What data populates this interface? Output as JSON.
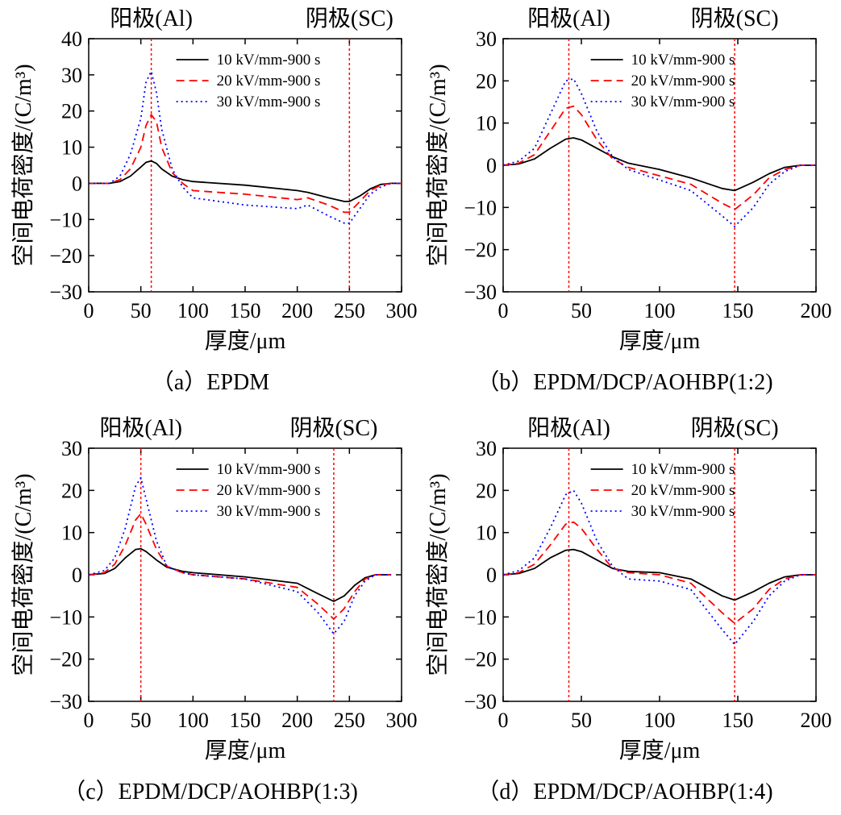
{
  "chart_data": [
    {
      "type": "line",
      "caption": "（a）EPDM",
      "anode_label": "阳极(Al)",
      "cathode_label": "阴极(SC)",
      "xlabel": "厚度/μm",
      "ylabel": "空间电荷密度/(C/m³)",
      "xlim": [
        0,
        300
      ],
      "ylim": [
        -30,
        40
      ],
      "xticks": [
        0,
        50,
        100,
        150,
        200,
        250,
        300
      ],
      "yticks": [
        -30,
        -20,
        -10,
        0,
        10,
        20,
        30,
        40
      ],
      "electrode_lines": [
        60,
        250
      ],
      "legend_position": "top-right",
      "series": [
        {
          "name": "10 kV/mm-900 s",
          "color": "#000000",
          "dash": "solid",
          "x": [
            0,
            20,
            30,
            40,
            50,
            55,
            60,
            65,
            70,
            80,
            90,
            100,
            150,
            200,
            210,
            230,
            245,
            250,
            260,
            270,
            280,
            290,
            300
          ],
          "y": [
            0,
            0,
            0.5,
            2,
            4.5,
            5.8,
            6.2,
            5.5,
            4,
            2,
            1,
            0.5,
            -0.5,
            -2,
            -2.5,
            -4,
            -5,
            -5,
            -3.5,
            -1.5,
            -0.3,
            0,
            0
          ]
        },
        {
          "name": "20 kV/mm-900 s",
          "color": "#ff0000",
          "dash": "dashed",
          "x": [
            0,
            20,
            30,
            40,
            50,
            55,
            60,
            65,
            70,
            80,
            90,
            100,
            150,
            200,
            210,
            230,
            245,
            250,
            260,
            270,
            280,
            290,
            300
          ],
          "y": [
            0,
            0,
            1,
            4,
            10,
            16,
            19,
            17,
            10,
            3,
            0,
            -2,
            -3,
            -4.5,
            -4,
            -6,
            -8,
            -8,
            -5,
            -2,
            -0.5,
            0,
            0
          ]
        },
        {
          "name": "30 kV/mm-900 s",
          "color": "#0000ff",
          "dash": "dotted",
          "x": [
            0,
            20,
            30,
            40,
            50,
            55,
            60,
            65,
            70,
            80,
            90,
            100,
            150,
            200,
            210,
            230,
            245,
            250,
            260,
            270,
            280,
            290,
            300
          ],
          "y": [
            0,
            0,
            2,
            8,
            18,
            28,
            31,
            25,
            15,
            4,
            -1,
            -4,
            -6,
            -7,
            -6,
            -9,
            -11,
            -11,
            -7,
            -3,
            -1,
            0,
            0
          ]
        }
      ]
    },
    {
      "type": "line",
      "caption": "（b）EPDM/DCP/AOHBP(1:2)",
      "anode_label": "阳极(Al)",
      "cathode_label": "阴极(SC)",
      "xlabel": "厚度/μm",
      "ylabel": "空间电荷密度/(C/m³)",
      "xlim": [
        0,
        200
      ],
      "ylim": [
        -30,
        30
      ],
      "xticks": [
        0,
        50,
        100,
        150,
        200
      ],
      "yticks": [
        -30,
        -20,
        -10,
        0,
        10,
        20,
        30
      ],
      "electrode_lines": [
        42,
        148
      ],
      "legend_position": "top-right",
      "series": [
        {
          "name": "10 kV/mm-900 s",
          "color": "#000000",
          "dash": "solid",
          "x": [
            0,
            10,
            20,
            30,
            40,
            45,
            50,
            60,
            70,
            80,
            100,
            120,
            140,
            148,
            160,
            170,
            180,
            190,
            200
          ],
          "y": [
            0,
            0.3,
            1.5,
            4,
            6.2,
            6.5,
            6,
            4,
            2,
            0.5,
            -1,
            -3,
            -5.5,
            -6,
            -4,
            -2,
            -0.5,
            0,
            0
          ]
        },
        {
          "name": "20 kV/mm-900 s",
          "color": "#ff0000",
          "dash": "dashed",
          "x": [
            0,
            10,
            20,
            30,
            40,
            45,
            50,
            60,
            70,
            80,
            100,
            120,
            140,
            148,
            160,
            170,
            180,
            190,
            200
          ],
          "y": [
            0,
            0.5,
            2.5,
            8,
            13.5,
            14,
            12,
            6,
            1.5,
            -0.5,
            -2.5,
            -4.5,
            -9,
            -10.5,
            -7,
            -3,
            -1,
            0,
            0
          ]
        },
        {
          "name": "30 kV/mm-900 s",
          "color": "#0000ff",
          "dash": "dotted",
          "x": [
            0,
            10,
            20,
            30,
            40,
            45,
            50,
            60,
            70,
            80,
            100,
            120,
            140,
            148,
            160,
            170,
            180,
            190,
            200
          ],
          "y": [
            0,
            1,
            4,
            12,
            20,
            20.5,
            17,
            8,
            2,
            -1,
            -3.5,
            -6,
            -12,
            -14.5,
            -10,
            -4.5,
            -1.5,
            0,
            0
          ]
        }
      ]
    },
    {
      "type": "line",
      "caption": "（c）EPDM/DCP/AOHBP(1:3)",
      "anode_label": "阳极(Al)",
      "cathode_label": "阴极(SC)",
      "xlabel": "厚度/μm",
      "ylabel": "空间电荷密度/(C/m³)",
      "xlim": [
        0,
        300
      ],
      "ylim": [
        -30,
        30
      ],
      "xticks": [
        0,
        50,
        100,
        150,
        200,
        250,
        300
      ],
      "yticks": [
        -30,
        -20,
        -10,
        0,
        10,
        20,
        30
      ],
      "electrode_lines": [
        50,
        235
      ],
      "legend_position": "top-right",
      "series": [
        {
          "name": "10 kV/mm-900 s",
          "color": "#000000",
          "dash": "solid",
          "x": [
            0,
            15,
            25,
            35,
            45,
            50,
            55,
            65,
            75,
            90,
            100,
            150,
            200,
            220,
            235,
            245,
            255,
            265,
            275,
            290
          ],
          "y": [
            0,
            0.3,
            1.5,
            4,
            6,
            6.2,
            5.5,
            3.5,
            1.8,
            0.8,
            0.5,
            -0.5,
            -2,
            -4.5,
            -6.3,
            -5,
            -2.5,
            -0.7,
            0,
            0
          ]
        },
        {
          "name": "20 kV/mm-900 s",
          "color": "#ff0000",
          "dash": "dashed",
          "x": [
            0,
            15,
            25,
            35,
            45,
            50,
            55,
            65,
            75,
            90,
            100,
            150,
            200,
            220,
            235,
            245,
            255,
            265,
            275,
            290
          ],
          "y": [
            0,
            0.5,
            2.5,
            7,
            13,
            14.5,
            12,
            6,
            2,
            0.5,
            0,
            -1,
            -3,
            -7,
            -10.5,
            -8,
            -4,
            -1,
            0,
            0
          ]
        },
        {
          "name": "30 kV/mm-900 s",
          "color": "#0000ff",
          "dash": "dotted",
          "x": [
            0,
            15,
            25,
            35,
            45,
            50,
            55,
            65,
            75,
            90,
            100,
            150,
            200,
            220,
            235,
            245,
            255,
            265,
            275,
            290
          ],
          "y": [
            0,
            1,
            4,
            11,
            21,
            23,
            18,
            8,
            2,
            0.5,
            0,
            -1,
            -4,
            -9,
            -14,
            -11,
            -5,
            -1.5,
            0,
            0
          ]
        }
      ]
    },
    {
      "type": "line",
      "caption": "（d）EPDM/DCP/AOHBP(1:4)",
      "anode_label": "阳极(Al)",
      "cathode_label": "阴极(SC)",
      "xlabel": "厚度/μm",
      "ylabel": "空间电荷密度/(C/m³)",
      "xlim": [
        0,
        200
      ],
      "ylim": [
        -30,
        30
      ],
      "xticks": [
        0,
        50,
        100,
        150,
        200
      ],
      "yticks": [
        -30,
        -20,
        -10,
        0,
        10,
        20,
        30
      ],
      "electrode_lines": [
        42,
        148
      ],
      "legend_position": "top-right",
      "series": [
        {
          "name": "10 kV/mm-900 s",
          "color": "#000000",
          "dash": "solid",
          "x": [
            0,
            10,
            20,
            30,
            40,
            45,
            50,
            60,
            70,
            80,
            100,
            120,
            140,
            148,
            160,
            170,
            180,
            190,
            200
          ],
          "y": [
            0,
            0.3,
            1.5,
            4,
            5.8,
            6,
            5.5,
            3.5,
            1.5,
            0.8,
            0.5,
            -1,
            -5,
            -6,
            -4,
            -2,
            -0.5,
            0,
            0
          ]
        },
        {
          "name": "20 kV/mm-900 s",
          "color": "#ff0000",
          "dash": "dashed",
          "x": [
            0,
            10,
            20,
            30,
            40,
            45,
            50,
            60,
            70,
            80,
            100,
            120,
            140,
            148,
            160,
            170,
            180,
            190,
            200
          ],
          "y": [
            0,
            0.5,
            2.5,
            7,
            12,
            12.5,
            11,
            6,
            1.5,
            0.5,
            0,
            -2,
            -9,
            -11.5,
            -8,
            -3.5,
            -1,
            0,
            0
          ]
        },
        {
          "name": "30 kV/mm-900 s",
          "color": "#0000ff",
          "dash": "dotted",
          "x": [
            0,
            10,
            20,
            30,
            40,
            45,
            50,
            60,
            70,
            80,
            100,
            120,
            140,
            148,
            160,
            170,
            180,
            190,
            200
          ],
          "y": [
            0,
            1,
            4,
            11,
            19,
            20,
            17,
            8,
            2,
            -1,
            -1.5,
            -3.5,
            -13,
            -16.5,
            -11,
            -5,
            -1.5,
            0,
            0
          ]
        }
      ]
    }
  ]
}
